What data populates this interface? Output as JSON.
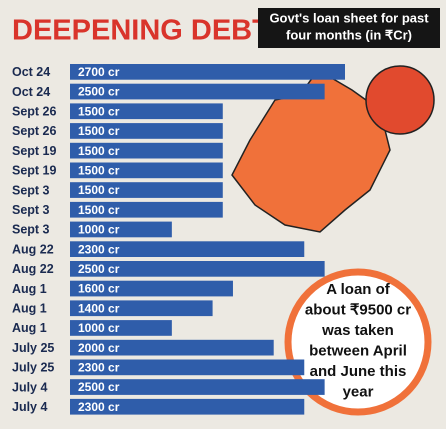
{
  "chart_data": {
    "type": "barh",
    "title": "DEEPENING DEBT",
    "subtitle": [
      "Govt's loan sheet for past",
      "four months (in ₹Cr)"
    ],
    "annotation": [
      "A loan of",
      "about ₹9500 cr",
      "was taken",
      "between April",
      "and June this",
      "year"
    ],
    "color": "#2f5daa",
    "categories": [
      "Oct 24",
      "Oct 24",
      "Sept 26",
      "Sept 26",
      "Sept 19",
      "Sept 19",
      "Sept 3",
      "Sept 3",
      "Sept 3",
      "Aug 22",
      "Aug 22",
      "Aug 1",
      "Aug 1",
      "Aug 1",
      "July 25",
      "July 25",
      "July 4",
      "July 4"
    ],
    "values": [
      2700,
      2500,
      1500,
      1500,
      1500,
      1500,
      1500,
      1500,
      1000,
      2300,
      2500,
      1600,
      1400,
      1000,
      2000,
      2300,
      2500,
      2300
    ],
    "value_labels": [
      "2700 cr",
      "2500 cr",
      "1500 cr",
      "1500 cr",
      "1500 cr",
      "1500 cr",
      "1500 cr",
      "1500 cr",
      "1000 cr",
      "2300 cr",
      "2500 cr",
      "1600 cr",
      "1400 cr",
      "1000 cr",
      "2000 cr",
      "2300 cr",
      "2500 cr",
      "2300 cr"
    ]
  }
}
